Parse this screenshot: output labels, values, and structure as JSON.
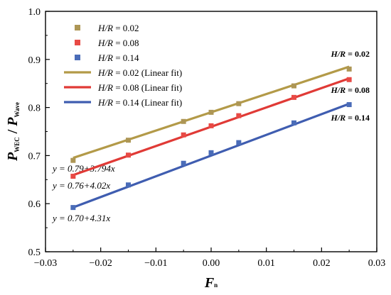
{
  "chart_data": {
    "type": "scatter",
    "xlabel": {
      "main": "F",
      "sub": "n"
    },
    "ylabel": {
      "num": "P",
      "num_sub": "WEC",
      "sep": " / ",
      "den": "P",
      "den_sub": "Wave"
    },
    "xlim": [
      -0.03,
      0.03
    ],
    "ylim": [
      0.5,
      1.0
    ],
    "xticks": [
      -0.03,
      -0.02,
      -0.01,
      0.0,
      0.01,
      0.02,
      0.03
    ],
    "xtick_labels": [
      "−0.03",
      "−0.02",
      "−0.01",
      "0.00",
      "0.01",
      "0.02",
      "0.03"
    ],
    "yticks": [
      0.5,
      0.6,
      0.7,
      0.8,
      0.9,
      1.0
    ],
    "ytick_labels": [
      "0.5",
      "0.6",
      "0.7",
      "0.8",
      "0.9",
      "1.0"
    ],
    "grid": false,
    "legend_position": "top-left",
    "series": [
      {
        "name_italic": "H/R",
        "name_rest": " = 0.02",
        "fit_name_rest": " = 0.02 (Linear fit)",
        "color": "#ad9655",
        "line_color": "#b39a48",
        "x": [
          -0.025,
          -0.015,
          -0.005,
          0.0,
          0.005,
          0.015,
          0.025
        ],
        "y": [
          0.69,
          0.732,
          0.771,
          0.79,
          0.808,
          0.845,
          0.88
        ],
        "fit": {
          "intercept": 0.79,
          "slope": 3.794
        },
        "equation": "y = 0.79+3.794x",
        "end_label": "H/R = 0.02"
      },
      {
        "name_italic": "H/R",
        "name_rest": " = 0.08",
        "fit_name_rest": " = 0.08 (Linear fit)",
        "color": "#e84a45",
        "line_color": "#e03a36",
        "x": [
          -0.025,
          -0.015,
          -0.005,
          0.0,
          0.005,
          0.015,
          0.025
        ],
        "y": [
          0.657,
          0.701,
          0.743,
          0.762,
          0.783,
          0.821,
          0.858
        ],
        "fit": {
          "intercept": 0.76,
          "slope": 4.02
        },
        "equation": "y = 0.76+4.02x",
        "end_label": "H/R = 0.08"
      },
      {
        "name_italic": "H/R",
        "name_rest": " = 0.14",
        "fit_name_rest": " = 0.14 (Linear fit)",
        "color": "#4a6cb8",
        "line_color": "#3f5db0",
        "x": [
          -0.025,
          -0.015,
          -0.005,
          0.0,
          0.005,
          0.015,
          0.025
        ],
        "y": [
          0.592,
          0.639,
          0.684,
          0.706,
          0.727,
          0.768,
          0.806
        ],
        "fit": {
          "intercept": 0.7,
          "slope": 4.31
        },
        "equation": "y = 0.70+4.31x",
        "end_label": "H/R = 0.14"
      }
    ]
  }
}
